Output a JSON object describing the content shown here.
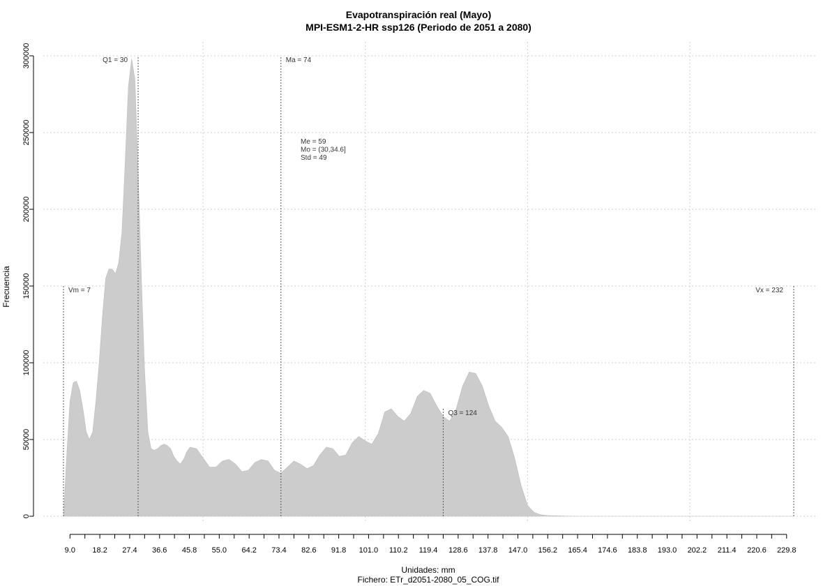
{
  "chart_data": {
    "type": "area",
    "title": "Evapotranspiración real (Mayo)",
    "subtitle": "MPI-ESM1-2-HR ssp126 (Periodo de 2051 a 2080)",
    "xlabel": "Unidades: mm",
    "ylabel": "Frecuencia",
    "footer": "Fichero: ETr_d2051-2080_05_COG.tif",
    "xlim": [
      6.5,
      232
    ],
    "ylim": [
      0,
      300000
    ],
    "grid": true,
    "x_ticks": [
      9.0,
      18.2,
      27.4,
      36.6,
      45.8,
      55.0,
      64.2,
      73.4,
      82.6,
      91.8,
      101.0,
      110.2,
      119.4,
      128.6,
      137.8,
      147.0,
      156.2,
      165.4,
      174.6,
      183.8,
      193.0,
      202.2,
      211.4,
      220.6,
      229.8
    ],
    "x_tick_labels": [
      "9.0",
      "18.2",
      "27.4",
      "36.6",
      "45.8",
      "55.0",
      "64.2",
      "73.4",
      "82.6",
      "91.8",
      "101.0",
      "110.2",
      "119.4",
      "128.6",
      "137.8",
      "147.0",
      "156.2",
      "165.4",
      "174.6",
      "183.8",
      "193.0",
      "202.2",
      "211.4",
      "220.6",
      "229.8"
    ],
    "y_ticks": [
      0,
      50000,
      100000,
      150000,
      200000,
      250000,
      300000
    ],
    "y_tick_labels": [
      "0",
      "50000",
      "100000",
      "150000",
      "200000",
      "250000",
      "300000"
    ],
    "x_gridlines": [
      50,
      100,
      150,
      200
    ],
    "series": [
      {
        "fill": "#cccccc",
        "x": [
          7,
          8,
          9,
          10,
          11,
          12,
          13,
          14,
          15,
          16,
          17,
          18,
          19,
          20,
          21,
          22,
          23,
          24,
          25,
          26,
          27,
          28,
          29,
          30,
          31,
          32,
          33,
          34,
          35,
          36,
          37,
          38,
          39,
          40,
          41,
          42,
          43,
          44,
          45,
          46,
          48,
          50,
          52,
          54,
          56,
          58,
          60,
          62,
          64,
          66,
          68,
          70,
          72,
          74,
          76,
          78,
          80,
          82,
          84,
          86,
          88,
          90,
          92,
          94,
          96,
          98,
          100,
          102,
          104,
          106,
          108,
          110,
          112,
          114,
          116,
          118,
          120,
          122,
          124,
          126,
          128,
          130,
          132,
          134,
          136,
          138,
          140,
          142,
          144,
          146,
          148,
          150,
          152,
          154,
          156,
          158,
          160,
          162,
          164,
          166,
          168,
          170,
          175,
          180,
          190,
          200,
          215,
          232
        ],
        "y": [
          0,
          40000,
          75000,
          87000,
          88000,
          82000,
          70000,
          55000,
          50000,
          55000,
          75000,
          100000,
          130000,
          155000,
          161000,
          161000,
          158000,
          165000,
          185000,
          230000,
          280000,
          298000,
          285000,
          225000,
          155000,
          95000,
          55000,
          44000,
          43000,
          44000,
          46000,
          47000,
          46000,
          44000,
          39000,
          36000,
          34000,
          37000,
          42000,
          45000,
          44000,
          38000,
          32000,
          32000,
          36000,
          37000,
          34000,
          29000,
          30000,
          35000,
          37000,
          36000,
          30000,
          28000,
          32000,
          36000,
          34000,
          31000,
          33000,
          40000,
          45000,
          44000,
          39000,
          40000,
          48000,
          52000,
          49000,
          47000,
          54000,
          68000,
          70000,
          65000,
          62000,
          67000,
          78000,
          82000,
          80000,
          72000,
          65000,
          62000,
          70000,
          85000,
          94000,
          93000,
          85000,
          72000,
          62000,
          58000,
          52000,
          38000,
          20000,
          7000,
          2500,
          1000,
          500,
          300,
          200,
          100,
          50,
          20,
          0,
          0,
          0,
          0,
          0,
          0,
          0,
          0
        ]
      }
    ],
    "vlines": [
      {
        "x": 7,
        "y_top": 150000,
        "label": "Vm = 7",
        "label_side": "right"
      },
      {
        "x": 30,
        "y_top": 300000,
        "label": "Q1 = 30",
        "label_side": "left"
      },
      {
        "x": 74,
        "y_top": 300000,
        "label": "Ma = 74",
        "label_side": "right"
      },
      {
        "x": 124,
        "y_top": 70000,
        "label": "Q3 = 124",
        "label_side": "right"
      },
      {
        "x": 232,
        "y_top": 150000,
        "label": "Vx = 232",
        "label_side": "left"
      }
    ],
    "stats_text": [
      "Me = 59",
      "Mo = (30,34.6]",
      "Std = 49"
    ],
    "colors": {
      "fill": "#cccccc",
      "grid": "#cfcfcf",
      "axis": "#000000",
      "vline": "#555555"
    }
  }
}
